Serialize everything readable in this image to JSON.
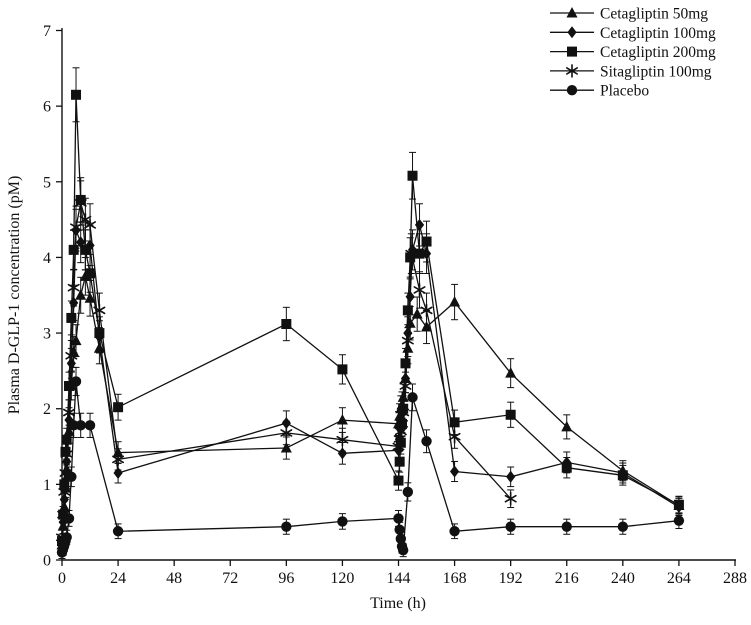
{
  "chart_data": {
    "type": "line",
    "title": "",
    "xlabel": "Time (h)",
    "ylabel": "Plasma D-GLP-1 concentration (pM)",
    "xlim": [
      0,
      288
    ],
    "ylim": [
      0,
      7
    ],
    "xticks": [
      0,
      24,
      48,
      72,
      96,
      120,
      144,
      168,
      192,
      216,
      240,
      264,
      288
    ],
    "yticks": [
      0,
      1,
      2,
      3,
      4,
      5,
      6,
      7
    ],
    "grid": false,
    "legend_position": "top-right",
    "line_color": "#111111",
    "background": "#ffffff",
    "error_bars": {
      "shown": true,
      "approx_model_base": 0.08,
      "approx_model_frac": 0.045
    },
    "series": [
      {
        "name": "Cetagliptin 50mg",
        "marker": "triangle",
        "points": [
          [
            0,
            0.2
          ],
          [
            0.5,
            0.45
          ],
          [
            1,
            0.7
          ],
          [
            1.5,
            0.95
          ],
          [
            2,
            1.2
          ],
          [
            3,
            1.7
          ],
          [
            4,
            2.3
          ],
          [
            5,
            2.75
          ],
          [
            6,
            2.9
          ],
          [
            8,
            3.5
          ],
          [
            10,
            3.75
          ],
          [
            12,
            3.46
          ],
          [
            16,
            2.8
          ],
          [
            24,
            1.42
          ],
          [
            96,
            1.48
          ],
          [
            120,
            1.85
          ],
          [
            144,
            1.8
          ],
          [
            144.5,
            1.9
          ],
          [
            145,
            2.0
          ],
          [
            145.5,
            2.05
          ],
          [
            146,
            2.15
          ],
          [
            147,
            2.4
          ],
          [
            148,
            2.8
          ],
          [
            149,
            3.13
          ],
          [
            152,
            3.25
          ],
          [
            156,
            3.08
          ],
          [
            168,
            3.41
          ],
          [
            192,
            2.47
          ],
          [
            216,
            1.76
          ],
          [
            240,
            1.18
          ],
          [
            264,
            0.72
          ]
        ]
      },
      {
        "name": "Cetagliptin 100mg",
        "marker": "diamond",
        "points": [
          [
            0,
            0.2
          ],
          [
            0.5,
            0.5
          ],
          [
            1,
            0.8
          ],
          [
            1.5,
            1.05
          ],
          [
            2,
            1.3
          ],
          [
            3,
            1.85
          ],
          [
            4,
            2.6
          ],
          [
            5,
            3.4
          ],
          [
            6,
            4.36
          ],
          [
            8,
            4.2
          ],
          [
            10,
            4.1
          ],
          [
            12,
            4.16
          ],
          [
            16,
            2.95
          ],
          [
            24,
            1.15
          ],
          [
            96,
            1.81
          ],
          [
            120,
            1.41
          ],
          [
            144,
            1.45
          ],
          [
            144.5,
            1.6
          ],
          [
            145,
            1.72
          ],
          [
            145.5,
            1.85
          ],
          [
            146,
            1.95
          ],
          [
            147,
            2.4
          ],
          [
            148,
            3.0
          ],
          [
            149,
            3.48
          ],
          [
            150,
            4.1
          ],
          [
            153,
            4.43
          ],
          [
            156,
            4.05
          ],
          [
            168,
            1.17
          ],
          [
            192,
            1.1
          ],
          [
            216,
            1.29
          ],
          [
            240,
            1.15
          ],
          [
            264,
            0.7
          ]
        ]
      },
      {
        "name": "Cetagliptin 200mg",
        "marker": "square",
        "points": [
          [
            0,
            0.25
          ],
          [
            0.5,
            0.6
          ],
          [
            1,
            1.0
          ],
          [
            1.5,
            1.43
          ],
          [
            2,
            1.59
          ],
          [
            3,
            2.3
          ],
          [
            4,
            3.2
          ],
          [
            5,
            4.1
          ],
          [
            6,
            6.15
          ],
          [
            8,
            4.76
          ],
          [
            10,
            4.1
          ],
          [
            12,
            3.79
          ],
          [
            16,
            3.0
          ],
          [
            24,
            2.02
          ],
          [
            96,
            3.12
          ],
          [
            120,
            2.52
          ],
          [
            144,
            1.05
          ],
          [
            144.5,
            1.3
          ],
          [
            145,
            1.55
          ],
          [
            145.5,
            1.8
          ],
          [
            146,
            2.0
          ],
          [
            147,
            2.6
          ],
          [
            148,
            3.3
          ],
          [
            149,
            4.0
          ],
          [
            150,
            5.08
          ],
          [
            153,
            4.05
          ],
          [
            156,
            4.21
          ],
          [
            168,
            1.82
          ],
          [
            192,
            1.92
          ],
          [
            216,
            1.22
          ],
          [
            240,
            1.12
          ],
          [
            264,
            0.73
          ]
        ]
      },
      {
        "name": "Sitagliptin 100mg",
        "marker": "star",
        "points": [
          [
            0,
            0.3
          ],
          [
            0.5,
            0.6
          ],
          [
            1,
            0.9
          ],
          [
            1.5,
            1.15
          ],
          [
            2,
            1.4
          ],
          [
            3,
            1.95
          ],
          [
            4,
            2.7
          ],
          [
            5,
            3.6
          ],
          [
            6,
            4.4
          ],
          [
            8,
            4.72
          ],
          [
            10,
            4.5
          ],
          [
            12,
            4.43
          ],
          [
            16,
            3.3
          ],
          [
            24,
            1.33
          ],
          [
            96,
            1.68
          ],
          [
            120,
            1.59
          ],
          [
            144,
            1.5
          ],
          [
            144.5,
            1.6
          ],
          [
            145,
            1.7
          ],
          [
            145.5,
            1.8
          ],
          [
            146,
            1.95
          ],
          [
            147,
            2.3
          ],
          [
            148,
            2.9
          ],
          [
            149.5,
            4.05
          ],
          [
            153,
            3.57
          ],
          [
            156,
            3.3
          ],
          [
            168,
            1.63
          ],
          [
            192,
            0.81
          ]
        ]
      },
      {
        "name": "Placebo",
        "marker": "circle",
        "points": [
          [
            0,
            0.1
          ],
          [
            0.5,
            0.15
          ],
          [
            1,
            0.2
          ],
          [
            1.5,
            0.25
          ],
          [
            2,
            0.3
          ],
          [
            3,
            0.55
          ],
          [
            4,
            1.1
          ],
          [
            5,
            1.78
          ],
          [
            6,
            2.36
          ],
          [
            8,
            1.78
          ],
          [
            12,
            1.78
          ],
          [
            24,
            0.38
          ],
          [
            96,
            0.44
          ],
          [
            120,
            0.51
          ],
          [
            144,
            0.55
          ],
          [
            144.5,
            0.4
          ],
          [
            145,
            0.28
          ],
          [
            145.5,
            0.18
          ],
          [
            146,
            0.13
          ],
          [
            148,
            0.9
          ],
          [
            150,
            2.15
          ],
          [
            156,
            1.57
          ],
          [
            168,
            0.38
          ],
          [
            192,
            0.44
          ],
          [
            216,
            0.44
          ],
          [
            240,
            0.44
          ],
          [
            264,
            0.52
          ]
        ]
      }
    ]
  }
}
